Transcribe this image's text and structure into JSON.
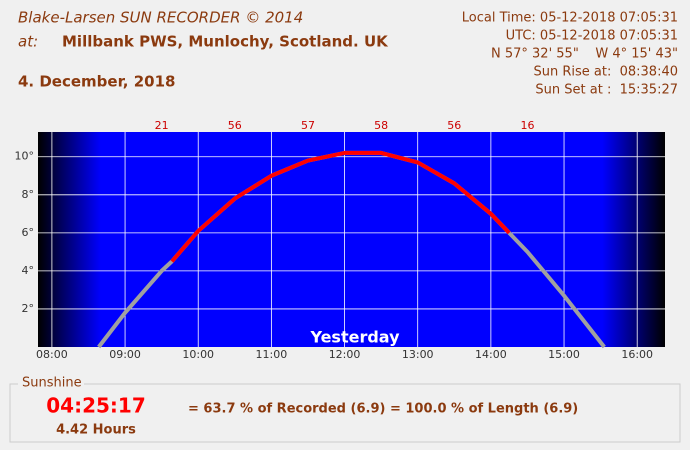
{
  "header": {
    "title": "Blake-Larsen SUN RECORDER © 2014",
    "at_label": "at:",
    "location": "Millbank PWS, Munlochy, Scotland. UK",
    "date": "4. December, 2018",
    "info": [
      "Local Time: 05-12-2018 07:05:31",
      "UTC: 05-12-2018 07:05:31",
      "N 57° 32' 55\"    W 4° 15' 43\"",
      "Sun Rise at:  08:38:40",
      "Sun Set at :  15:35:27"
    ]
  },
  "chart_data": {
    "type": "line",
    "annotation": "Yesterday",
    "x": [
      8.64,
      9,
      9.5,
      9.64,
      10,
      10.5,
      11,
      11.5,
      12,
      12.5,
      13,
      13.5,
      14,
      14.25,
      14.5,
      15,
      15.55
    ],
    "series": [
      {
        "color": "#a0a0a0",
        "values": [
          0,
          1.8,
          4.0,
          4.5,
          6.1,
          7.8,
          9.0,
          9.8,
          10.2,
          10.2,
          9.7,
          8.6,
          7.0,
          6.0,
          5.0,
          2.7,
          0
        ]
      },
      {
        "color": "#ff0000",
        "values": [
          null,
          null,
          null,
          4.5,
          6.1,
          7.8,
          9.0,
          9.8,
          10.2,
          10.2,
          9.7,
          8.6,
          7.0,
          6.0,
          null,
          null,
          null
        ]
      }
    ],
    "hourly": {
      "x": [
        9.5,
        10.5,
        11.5,
        12.5,
        13.5,
        14.5
      ],
      "values": [
        21,
        56,
        57,
        58,
        56,
        16
      ],
      "color": "#cc0000"
    },
    "xlim": [
      7.81,
      16.38
    ],
    "ylim": [
      0,
      11.3
    ],
    "xticks": [
      {
        "value": 8,
        "label": "08:00"
      },
      {
        "value": 9,
        "label": "09:00"
      },
      {
        "value": 10,
        "label": "10:00"
      },
      {
        "value": 11,
        "label": "11:00"
      },
      {
        "value": 12,
        "label": "12:00"
      },
      {
        "value": 13,
        "label": "13:00"
      },
      {
        "value": 14,
        "label": "14:00"
      },
      {
        "value": 15,
        "label": "15:00"
      },
      {
        "value": 16,
        "label": "16:00"
      }
    ],
    "yticks": [
      {
        "value": 2,
        "label": "2°"
      },
      {
        "value": 4,
        "label": "4°"
      },
      {
        "value": 6,
        "label": "6°"
      },
      {
        "value": 8,
        "label": "8°"
      },
      {
        "value": 10,
        "label": "10°"
      }
    ],
    "grid": true
  },
  "sunshine": {
    "legend": "Sunshine",
    "duration": "04:25:17",
    "hours": "4.42 Hours",
    "summary": "= 63.7 % of Recorded (6.9) = 100.0 % of Length (6.9)"
  }
}
